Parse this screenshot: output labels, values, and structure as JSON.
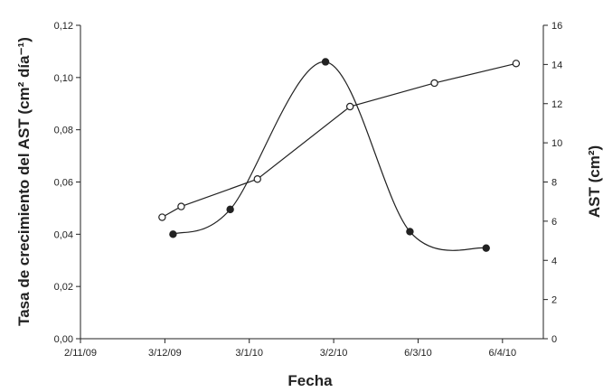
{
  "chart_data": {
    "type": "line",
    "xlabel": "Fecha",
    "ylabel_left": "Tasa de crecimiento del AST (cm² día⁻¹)",
    "ylabel_right": "AST (cm²)",
    "x_ticks": [
      "2/11/09",
      "3/12/09",
      "3/1/10",
      "3/2/10",
      "6/3/10",
      "6/4/10"
    ],
    "x_tick_dates": [
      "2009-11-02",
      "2009-12-03",
      "2010-01-03",
      "2010-02-03",
      "2010-03-06",
      "2010-04-06"
    ],
    "xlim": [
      "2009-11-02",
      "2010-04-21"
    ],
    "y_left_ticks": [
      "0,00",
      "0,02",
      "0,04",
      "0,06",
      "0,08",
      "0,10",
      "0,12"
    ],
    "y_left_lim": [
      0,
      0.12
    ],
    "y_right_ticks": [
      "0",
      "2",
      "4",
      "6",
      "8",
      "10",
      "12",
      "14",
      "16"
    ],
    "y_right_lim": [
      0,
      16
    ],
    "series": [
      {
        "axis": "left",
        "marker": "filled-circle",
        "smooth": true,
        "points": [
          {
            "x": "2009-12-06",
            "y": 0.04
          },
          {
            "x": "2009-12-27",
            "y": 0.0495
          },
          {
            "x": "2010-01-31",
            "y": 0.106
          },
          {
            "x": "2010-03-03",
            "y": 0.041
          },
          {
            "x": "2010-03-31",
            "y": 0.0347
          }
        ]
      },
      {
        "axis": "right",
        "marker": "open-circle",
        "smooth": false,
        "points": [
          {
            "x": "2009-12-02",
            "y": 6.2
          },
          {
            "x": "2009-12-09",
            "y": 6.75
          },
          {
            "x": "2010-01-06",
            "y": 8.15
          },
          {
            "x": "2010-02-09",
            "y": 11.85
          },
          {
            "x": "2010-03-12",
            "y": 13.05
          },
          {
            "x": "2010-04-11",
            "y": 14.05
          }
        ]
      }
    ]
  }
}
